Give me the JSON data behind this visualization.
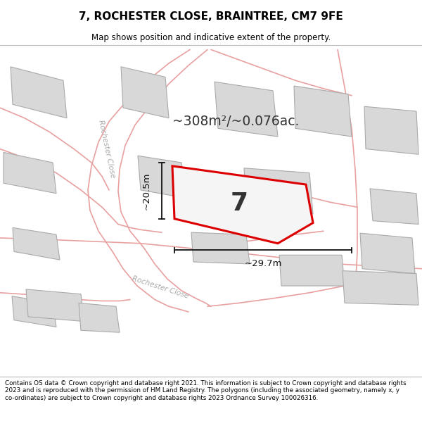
{
  "title_line1": "7, ROCHESTER CLOSE, BRAINTREE, CM7 9FE",
  "title_line2": "Map shows position and indicative extent of the property.",
  "area_text": "~308m²/~0.076ac.",
  "property_number": "7",
  "dim_width": "~29.7m",
  "dim_height": "~20.5m",
  "footer_text": "Contains OS data © Crown copyright and database right 2021. This information is subject to Crown copyright and database rights 2023 and is reproduced with the permission of HM Land Registry. The polygons (including the associated geometry, namely x, y co-ordinates) are subject to Crown copyright and database rights 2023 Ordnance Survey 100026316.",
  "map_bg": "#f5f5f5",
  "road_color": "#e8a0a0",
  "road_lw": 1.2,
  "building_face": "#d8d8d8",
  "building_edge": "#aaaaaa",
  "property_fill": "#f5f5f5",
  "property_edge": "#dd0000",
  "prop_edge_lw": 2.2,
  "label_color": "#333333",
  "dim_color": "#111111",
  "road_label_color": "#aaaaaa"
}
